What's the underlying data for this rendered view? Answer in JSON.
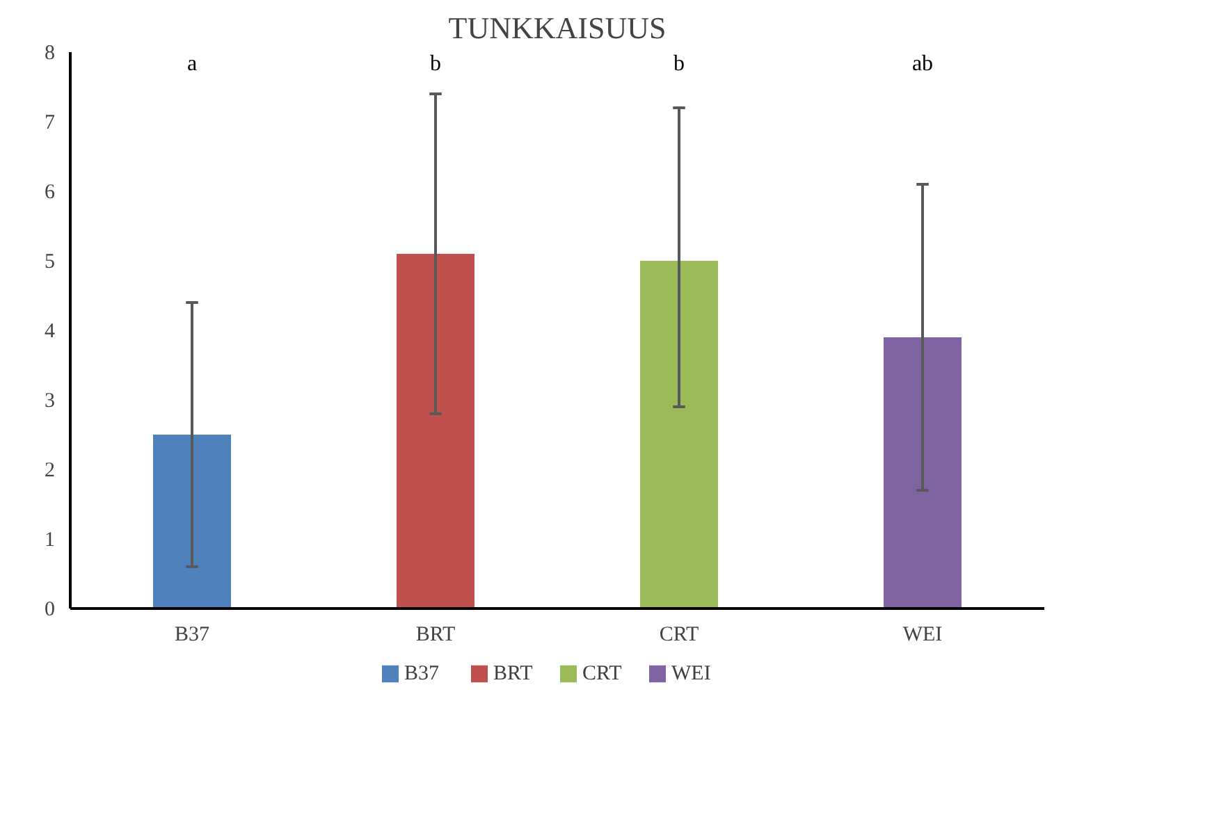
{
  "chart_data": {
    "type": "bar",
    "title": "TUNKKAISUUS",
    "categories": [
      "B37",
      "BRT",
      "CRT",
      "WEI"
    ],
    "series": [
      {
        "name": "B37",
        "color": "#4f81bd",
        "values": [
          2.5,
          null,
          null,
          null
        ],
        "errors": [
          1.9,
          null,
          null,
          null
        ]
      },
      {
        "name": "BRT",
        "color": "#c0504d",
        "values": [
          null,
          5.1,
          null,
          null
        ],
        "errors": [
          null,
          2.3,
          null,
          null
        ]
      },
      {
        "name": "CRT",
        "color": "#9bbb59",
        "values": [
          null,
          null,
          5.0,
          null
        ],
        "errors": [
          null,
          null,
          [
            2.9,
            7.2
          ],
          null
        ]
      },
      {
        "name": "WEI",
        "color": "#8064a2",
        "values": [
          null,
          null,
          null,
          3.9
        ],
        "errors": [
          null,
          null,
          null,
          2.2
        ]
      }
    ],
    "ylim": [
      0,
      8
    ],
    "yticks": [
      0,
      1,
      2,
      3,
      4,
      5,
      6,
      7,
      8
    ],
    "grid": false,
    "legend": "bottom",
    "annotations": [
      "a",
      "b",
      "b",
      "ab"
    ]
  }
}
